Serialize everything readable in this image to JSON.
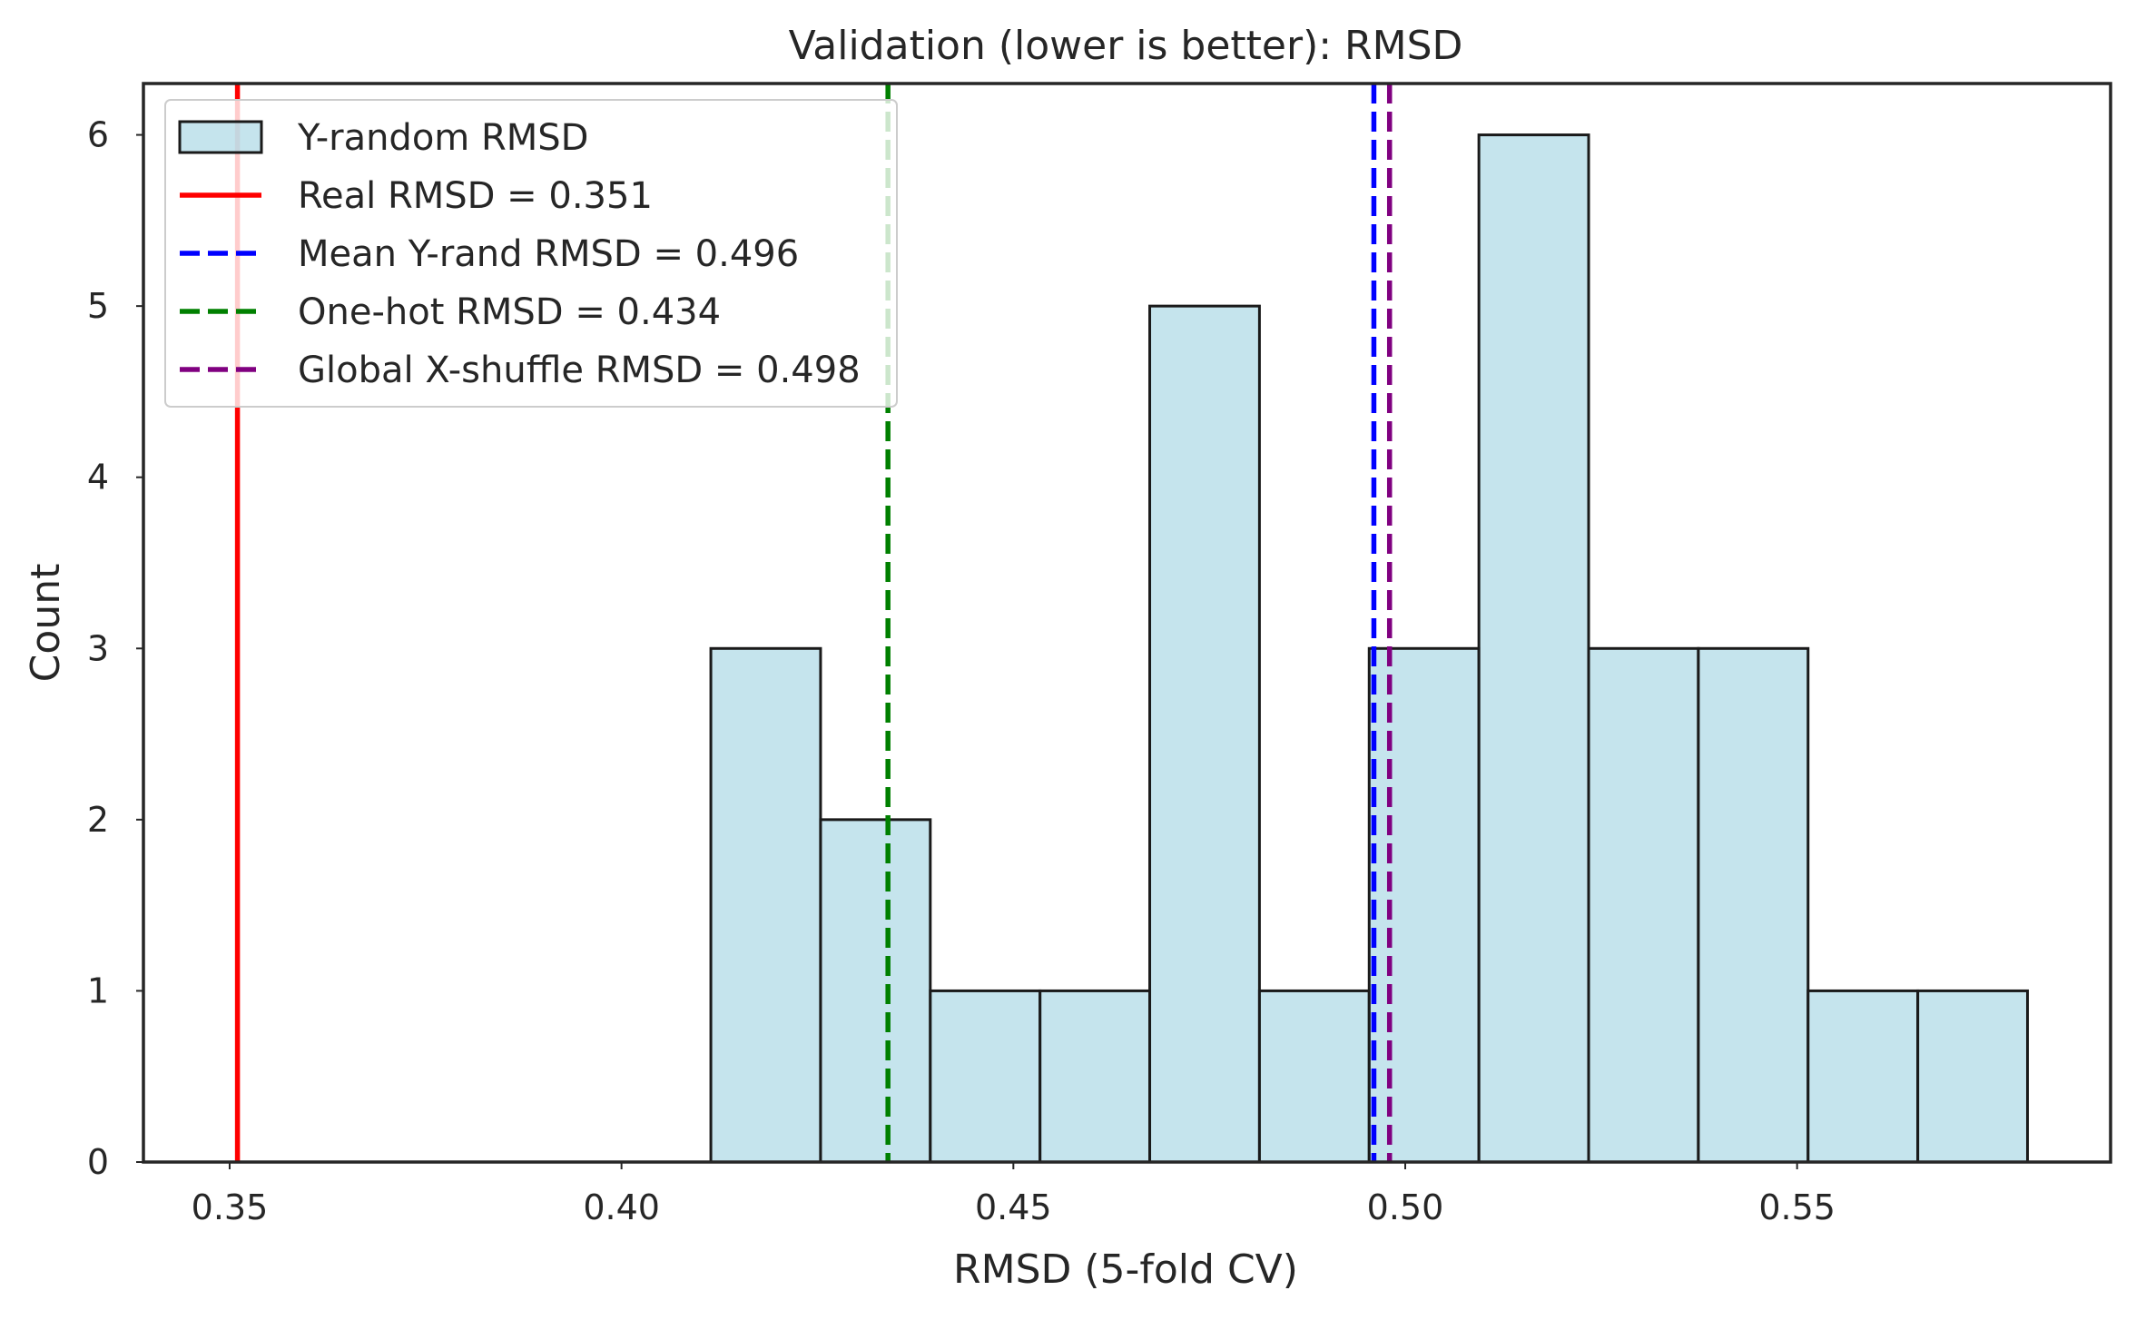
{
  "chart_data": {
    "type": "bar",
    "title": "Validation (lower is better): RMSD",
    "xlabel": "RMSD (5-fold CV)",
    "ylabel": "Count",
    "xlim": [
      0.339,
      0.59
    ],
    "ylim": [
      0,
      6.3
    ],
    "xticks": [
      0.35,
      0.4,
      0.45,
      0.5,
      0.55
    ],
    "xtick_labels": [
      "0.35",
      "0.40",
      "0.45",
      "0.50",
      "0.55"
    ],
    "yticks": [
      0,
      1,
      2,
      3,
      4,
      5,
      6
    ],
    "ytick_labels": [
      "0",
      "1",
      "2",
      "3",
      "4",
      "5",
      "6"
    ],
    "grid": false,
    "legend_position": "top-left",
    "histogram": {
      "name": "Y-random RMSD",
      "bin_edges": [
        0.4114,
        0.4254,
        0.4394,
        0.4534,
        0.4674,
        0.4814,
        0.4954,
        0.5094,
        0.5234,
        0.5374,
        0.5514,
        0.5654,
        0.5794
      ],
      "counts": [
        3,
        2,
        1,
        1,
        5,
        1,
        3,
        6,
        3,
        3,
        1,
        1
      ],
      "color": "#add8e6"
    },
    "reference_lines": [
      {
        "name": "Real RMSD = 0.351",
        "x": 0.351,
        "color": "#ff0000",
        "style": "solid"
      },
      {
        "name": "Mean Y-rand RMSD = 0.496",
        "x": 0.496,
        "color": "#0000ff",
        "style": "dashed"
      },
      {
        "name": "One-hot RMSD = 0.434",
        "x": 0.434,
        "color": "#008000",
        "style": "dashed"
      },
      {
        "name": "Global X-shuffle RMSD = 0.498",
        "x": 0.498,
        "color": "#800080",
        "style": "dashed"
      }
    ]
  }
}
